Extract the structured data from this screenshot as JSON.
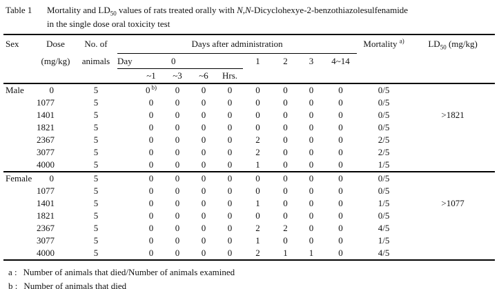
{
  "title": {
    "label": "Table 1",
    "line1_pre": "Mortality and LD",
    "line1_sub": "50",
    "line1_mid": " values of rats treated orally with ",
    "line1_italic": "N,N",
    "line1_post": "-Dicyclohexye-2-benzothiazolesulfenamide",
    "line2": "in the single dose oral toxicity test"
  },
  "table": {
    "header": {
      "sex": "Sex",
      "dose": "Dose",
      "dose_unit": "(mg/kg)",
      "animals_line1": "No. of",
      "animals_line2": "animals",
      "days_group": "Days after administration",
      "day_label": "Day",
      "day_zero": "0",
      "hours": [
        "~1",
        "~3",
        "~6",
        "Hrs."
      ],
      "days": [
        "1",
        "2",
        "3",
        "4~14"
      ],
      "mortality": "Mortality",
      "mortality_sup": "a)",
      "ld50_pre": "LD",
      "ld50_sub": "50",
      "ld50_post": " (mg/kg)"
    },
    "sections": [
      {
        "sex": "Male",
        "rows": [
          {
            "dose": "0",
            "animals": "5",
            "values": [
              "0",
              "0",
              "0",
              "0",
              "0",
              "0",
              "0",
              "0"
            ],
            "sup": {
              "index": 0,
              "text": "b)"
            },
            "mortality": "0/5",
            "ld50": ""
          },
          {
            "dose": "1077",
            "animals": "5",
            "values": [
              "0",
              "0",
              "0",
              "0",
              "0",
              "0",
              "0",
              "0"
            ],
            "mortality": "0/5",
            "ld50": ""
          },
          {
            "dose": "1401",
            "animals": "5",
            "values": [
              "0",
              "0",
              "0",
              "0",
              "0",
              "0",
              "0",
              "0"
            ],
            "mortality": "0/5",
            "ld50": ">1821"
          },
          {
            "dose": "1821",
            "animals": "5",
            "values": [
              "0",
              "0",
              "0",
              "0",
              "0",
              "0",
              "0",
              "0"
            ],
            "mortality": "0/5",
            "ld50": ""
          },
          {
            "dose": "2367",
            "animals": "5",
            "values": [
              "0",
              "0",
              "0",
              "0",
              "2",
              "0",
              "0",
              "0"
            ],
            "mortality": "2/5",
            "ld50": ""
          },
          {
            "dose": "3077",
            "animals": "5",
            "values": [
              "0",
              "0",
              "0",
              "0",
              "2",
              "0",
              "0",
              "0"
            ],
            "mortality": "2/5",
            "ld50": ""
          },
          {
            "dose": "4000",
            "animals": "5",
            "values": [
              "0",
              "0",
              "0",
              "0",
              "1",
              "0",
              "0",
              "0"
            ],
            "mortality": "1/5",
            "ld50": ""
          }
        ]
      },
      {
        "sex": "Female",
        "rows": [
          {
            "dose": "0",
            "animals": "5",
            "values": [
              "0",
              "0",
              "0",
              "0",
              "0",
              "0",
              "0",
              "0"
            ],
            "mortality": "0/5",
            "ld50": ""
          },
          {
            "dose": "1077",
            "animals": "5",
            "values": [
              "0",
              "0",
              "0",
              "0",
              "0",
              "0",
              "0",
              "0"
            ],
            "mortality": "0/5",
            "ld50": ""
          },
          {
            "dose": "1401",
            "animals": "5",
            "values": [
              "0",
              "0",
              "0",
              "0",
              "1",
              "0",
              "0",
              "0"
            ],
            "mortality": "1/5",
            "ld50": ">1077"
          },
          {
            "dose": "1821",
            "animals": "5",
            "values": [
              "0",
              "0",
              "0",
              "0",
              "0",
              "0",
              "0",
              "0"
            ],
            "mortality": "0/5",
            "ld50": ""
          },
          {
            "dose": "2367",
            "animals": "5",
            "values": [
              "0",
              "0",
              "0",
              "0",
              "2",
              "2",
              "0",
              "0"
            ],
            "mortality": "4/5",
            "ld50": ""
          },
          {
            "dose": "3077",
            "animals": "5",
            "values": [
              "0",
              "0",
              "0",
              "0",
              "1",
              "0",
              "0",
              "0"
            ],
            "mortality": "1/5",
            "ld50": ""
          },
          {
            "dose": "4000",
            "animals": "5",
            "values": [
              "0",
              "0",
              "0",
              "0",
              "2",
              "1",
              "1",
              "0"
            ],
            "mortality": "4/5",
            "ld50": ""
          }
        ]
      }
    ]
  },
  "footnotes": [
    {
      "label": "a :",
      "text": "Number of animals that died/Number of animals examined"
    },
    {
      "label": "b :",
      "text": "Number of animals that died"
    }
  ]
}
